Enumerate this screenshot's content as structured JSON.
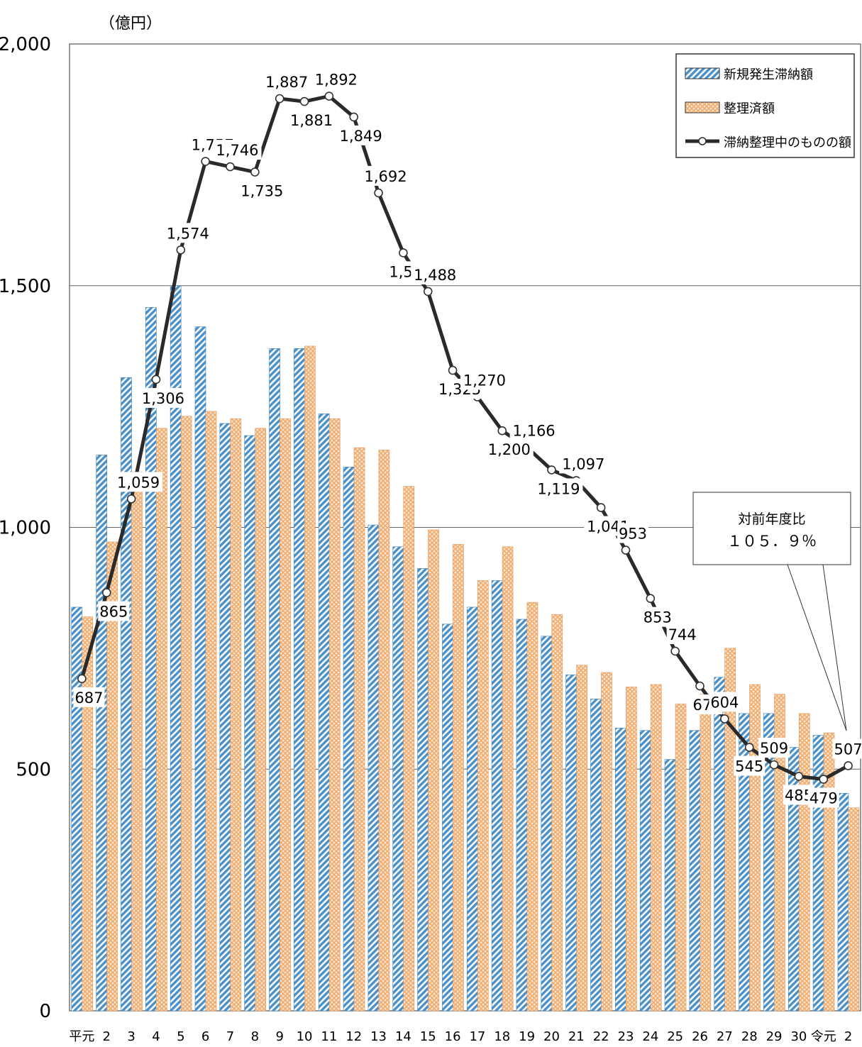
{
  "chart_data": {
    "type": "bar",
    "unit": "（億円）",
    "ylim": [
      0,
      2000
    ],
    "yticks": [
      0,
      500,
      1000,
      1500,
      2000
    ],
    "ytick_labels": [
      "0",
      "500",
      "1,000",
      "1,500",
      "2,000"
    ],
    "grid": true,
    "legend_position": "top-right",
    "categories": [
      "平元",
      "2",
      "3",
      "4",
      "5",
      "6",
      "7",
      "8",
      "9",
      "10",
      "11",
      "12",
      "13",
      "14",
      "15",
      "16",
      "17",
      "18",
      "19",
      "20",
      "21",
      "22",
      "23",
      "24",
      "25",
      "26",
      "27",
      "28",
      "29",
      "30",
      "令元",
      "2"
    ],
    "series": [
      {
        "name": "新規発生滞納額",
        "kind": "bar",
        "color": "#4a90c8",
        "values": [
          835,
          1150,
          1310,
          1455,
          1500,
          1415,
          1215,
          1190,
          1370,
          1370,
          1235,
          1125,
          1005,
          960,
          915,
          800,
          835,
          890,
          810,
          775,
          695,
          645,
          585,
          580,
          520,
          580,
          690,
          615,
          615,
          545,
          570,
          450
        ]
      },
      {
        "name": "整理済額",
        "kind": "bar",
        "color": "#f0a868",
        "values": [
          815,
          970,
          1115,
          1205,
          1230,
          1240,
          1225,
          1205,
          1225,
          1375,
          1225,
          1165,
          1160,
          1085,
          995,
          965,
          890,
          960,
          845,
          820,
          715,
          700,
          670,
          675,
          635,
          655,
          750,
          675,
          655,
          615,
          575,
          420
        ]
      },
      {
        "name": "滞納整理中のものの額",
        "kind": "line",
        "color": "#2a2a2a",
        "values": [
          687,
          865,
          1059,
          1306,
          1574,
          1757,
          1746,
          1735,
          1887,
          1881,
          1892,
          1849,
          1692,
          1568,
          1488,
          1325,
          1270,
          1200,
          1166,
          1119,
          1097,
          1041,
          953,
          853,
          744,
          672,
          604,
          545,
          509,
          485,
          479,
          507
        ],
        "labels": [
          "687",
          "865",
          "1,059",
          "1,306",
          "1,574",
          "1,757",
          "1,746",
          "1,735",
          "1,887",
          "1,881",
          "1,892",
          "1,849",
          "1,692",
          "1,568",
          "1,488",
          "1,325",
          "1,270",
          "1,200",
          "1,166",
          "1,119",
          "1,097",
          "1,041",
          "953",
          "853",
          "744",
          "672",
          "604",
          "545",
          "509",
          "485",
          "479",
          "507"
        ]
      }
    ],
    "annotation": {
      "title": "対前年度比",
      "value": "１０５．９％"
    }
  }
}
